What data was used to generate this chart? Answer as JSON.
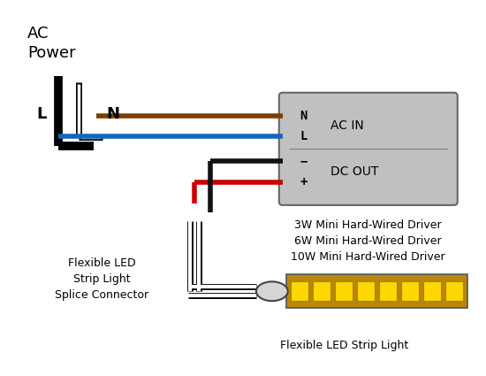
{
  "bg_color": "#ffffff",
  "ac_label_1": "AC",
  "ac_label_2": "Power",
  "L_label": "L",
  "N_label": "N",
  "driver_box_color": "#c0c0c0",
  "driver_box_edge": "#666666",
  "driver_labels": [
    "N",
    "L",
    "−",
    "+"
  ],
  "driver_acin_label": "AC IN",
  "driver_dcout_label": "DC OUT",
  "driver_text_lines": [
    "3W Mini Hard-Wired Driver",
    "6W Mini Hard-Wired Driver",
    "10W Mini Hard-Wired Driver"
  ],
  "wire_brown_color": "#7B3F00",
  "wire_blue_color": "#1565C0",
  "wire_red_color": "#CC0000",
  "wire_black_color": "#111111",
  "connector_label": "Flexible LED\nStrip Light\nSplice Connector",
  "strip_label": "Flexible LED Strip Light",
  "led_color": "#FFD700",
  "strip_bg_color": "#B8860B",
  "strip_border_color": "#555555"
}
